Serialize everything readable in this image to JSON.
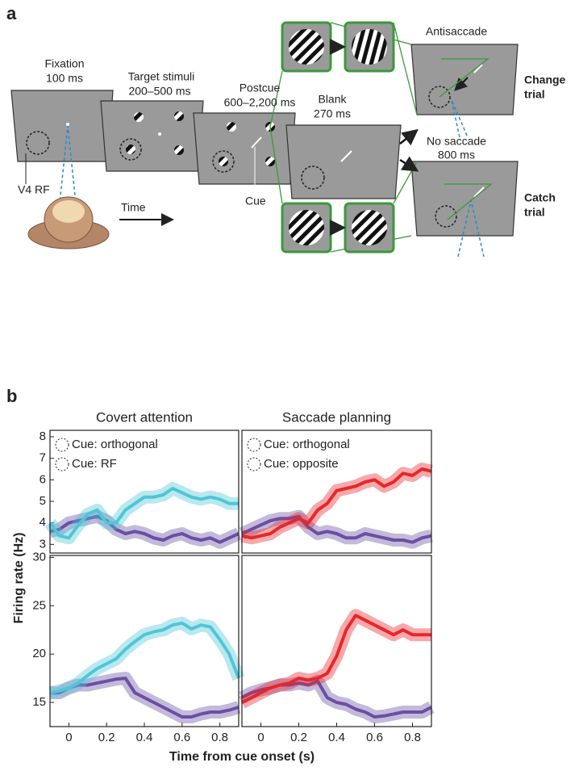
{
  "panel_a": {
    "label": "a",
    "screens": [
      {
        "title": "Fixation",
        "duration": "100 ms"
      },
      {
        "title": "Target stimuli",
        "duration": "200–500 ms"
      },
      {
        "title": "Postcue",
        "duration": "600–2,200 ms"
      },
      {
        "title": "Blank",
        "duration": "270 ms"
      }
    ],
    "antisaccade": "Antisaccade",
    "no_saccade": "No saccade",
    "no_saccade_duration": "800 ms",
    "change_trial": [
      "Change",
      "trial"
    ],
    "catch_trial": [
      "Catch",
      "trial"
    ],
    "rf_label": "V4 RF",
    "cue_label": "Cue",
    "time_label": "Time"
  },
  "panel_b": {
    "label": "b",
    "ylabel": "Firing rate (Hz)",
    "xlabel": "Time from cue onset (s)"
  },
  "chart_data": [
    {
      "type": "line",
      "title": "Covert attention",
      "x": [
        -0.1,
        -0.05,
        0,
        0.05,
        0.1,
        0.15,
        0.2,
        0.25,
        0.3,
        0.35,
        0.4,
        0.45,
        0.5,
        0.55,
        0.6,
        0.65,
        0.7,
        0.75,
        0.8,
        0.85,
        0.9
      ],
      "series": [
        {
          "name": "Cue: orthogonal",
          "color": "#6a4fa3",
          "values": [
            3.6,
            3.7,
            4.0,
            4.1,
            4.2,
            4.3,
            4.1,
            3.7,
            3.5,
            3.6,
            3.5,
            3.3,
            3.2,
            3.4,
            3.5,
            3.3,
            3.2,
            3.3,
            3.1,
            3.3,
            3.5
          ]
        },
        {
          "name": "Cue: RF",
          "color": "#4fc6d6",
          "values": [
            4.0,
            3.4,
            3.3,
            3.9,
            4.4,
            4.6,
            4.0,
            4.0,
            4.6,
            4.9,
            5.2,
            5.2,
            5.3,
            5.6,
            5.4,
            5.2,
            5.1,
            5.2,
            5.1,
            4.9,
            4.9
          ]
        }
      ],
      "xlim": [
        -0.1,
        0.9
      ],
      "ylim": [
        2.6,
        8.3
      ],
      "yticks": [
        3,
        4,
        5,
        6,
        7,
        8
      ]
    },
    {
      "type": "line",
      "title": "Saccade planning",
      "x": [
        -0.1,
        -0.05,
        0,
        0.05,
        0.1,
        0.15,
        0.2,
        0.25,
        0.3,
        0.35,
        0.4,
        0.45,
        0.5,
        0.55,
        0.6,
        0.65,
        0.7,
        0.75,
        0.8,
        0.85,
        0.9
      ],
      "series": [
        {
          "name": "Cue: orthogonal",
          "color": "#6a4fa3",
          "values": [
            3.5,
            3.7,
            3.9,
            4.1,
            4.2,
            4.2,
            4.3,
            3.8,
            3.5,
            3.6,
            3.5,
            3.3,
            3.3,
            3.5,
            3.4,
            3.3,
            3.2,
            3.2,
            3.1,
            3.3,
            3.4
          ]
        },
        {
          "name": "Cue: opposite",
          "color": "#e8262a",
          "values": [
            3.4,
            3.3,
            3.4,
            3.5,
            3.8,
            4.0,
            4.2,
            4.0,
            4.6,
            4.9,
            5.5,
            5.6,
            5.7,
            5.9,
            6.0,
            5.7,
            5.9,
            6.3,
            6.2,
            6.5,
            6.4
          ]
        }
      ],
      "xlim": [
        -0.1,
        0.9
      ],
      "ylim": [
        2.6,
        8.3
      ]
    },
    {
      "type": "line",
      "x": [
        -0.1,
        -0.05,
        0,
        0.05,
        0.1,
        0.15,
        0.2,
        0.25,
        0.3,
        0.35,
        0.4,
        0.45,
        0.5,
        0.55,
        0.6,
        0.65,
        0.7,
        0.75,
        0.8,
        0.85,
        0.9
      ],
      "series": [
        {
          "color": "#6a4fa3",
          "values": [
            16,
            16,
            16.5,
            16.8,
            16.8,
            17,
            17.2,
            17.4,
            17.5,
            16,
            15.5,
            15,
            14.5,
            14,
            13.5,
            13.5,
            13.8,
            14,
            14,
            14.2,
            14.5
          ]
        },
        {
          "color": "#4fc6d6",
          "values": [
            16,
            16.2,
            16.5,
            17,
            17.8,
            18.5,
            19,
            19.5,
            20.5,
            21.3,
            22,
            22.3,
            22.5,
            23,
            23.2,
            22.6,
            23,
            22.8,
            21.5,
            20,
            17.5
          ]
        }
      ],
      "xlim": [
        -0.1,
        0.9
      ],
      "ylim": [
        12.5,
        30.2
      ],
      "xticks": [
        0,
        0.2,
        0.4,
        0.6,
        0.8
      ],
      "yticks": [
        15,
        20,
        25,
        30
      ]
    },
    {
      "type": "line",
      "x": [
        -0.1,
        -0.05,
        0,
        0.05,
        0.1,
        0.15,
        0.2,
        0.25,
        0.3,
        0.35,
        0.4,
        0.45,
        0.5,
        0.55,
        0.6,
        0.65,
        0.7,
        0.75,
        0.8,
        0.85,
        0.9
      ],
      "series": [
        {
          "color": "#6a4fa3",
          "values": [
            15.5,
            16,
            16.3,
            16.5,
            16.8,
            16.8,
            17,
            16.8,
            17.2,
            15.5,
            15,
            14.8,
            14.3,
            14,
            13.5,
            13.6,
            13.8,
            14,
            14,
            14,
            14.5
          ]
        },
        {
          "color": "#e8262a",
          "values": [
            15,
            15.5,
            16,
            16.5,
            16.8,
            17,
            17.5,
            17.3,
            17.5,
            18,
            19.8,
            22.5,
            24,
            23.5,
            23,
            22.5,
            22,
            22.5,
            22,
            22,
            22
          ]
        }
      ],
      "xlim": [
        -0.1,
        0.9
      ],
      "ylim": [
        12.5,
        30.2
      ],
      "xticks": [
        0,
        0.2,
        0.4,
        0.6,
        0.8
      ]
    }
  ]
}
